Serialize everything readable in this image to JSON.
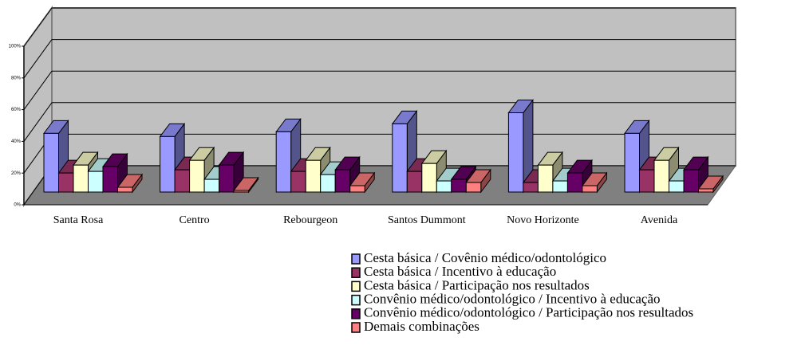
{
  "chart_data": {
    "type": "bar3d",
    "categories": [
      "Santa Rosa",
      "Centro",
      "Rebourgeon",
      "Santos Dummont",
      "Novo Horizonte",
      "Avenida"
    ],
    "series": [
      {
        "name": "Cesta básica / Covênio médico/odontológico",
        "color": "#9999ff",
        "values": [
          37,
          35,
          38,
          43,
          50,
          37
        ]
      },
      {
        "name": "Cesta básica / Incentivo à educação",
        "color": "#993366",
        "values": [
          12,
          14,
          13,
          13,
          6,
          14
        ]
      },
      {
        "name": "Cesta básica / Participação nos resultados",
        "color": "#ffffcc",
        "values": [
          17,
          20,
          20,
          18,
          17,
          20
        ]
      },
      {
        "name": "Convênio médico/odontológico / Incentivo à educação",
        "color": "#ccffff",
        "values": [
          13,
          8,
          11,
          7,
          7,
          7
        ]
      },
      {
        "name": "Convênio médico/odontológico / Participação nos resultados",
        "color": "#660066",
        "values": [
          16,
          17,
          14,
          8,
          12,
          14
        ]
      },
      {
        "name": "Demais combinações",
        "color": "#ff8080",
        "values": [
          3,
          1,
          4,
          6,
          4,
          2
        ]
      }
    ],
    "ylim": [
      0,
      100
    ],
    "yticks": [
      {
        "value": 0,
        "label": "0%"
      },
      {
        "value": 20,
        "label": "20%"
      },
      {
        "value": 40,
        "label": "40%"
      },
      {
        "value": 60,
        "label": "60%"
      },
      {
        "value": 80,
        "label": "80%"
      },
      {
        "value": 100,
        "label": "100%"
      }
    ],
    "grid": true
  }
}
